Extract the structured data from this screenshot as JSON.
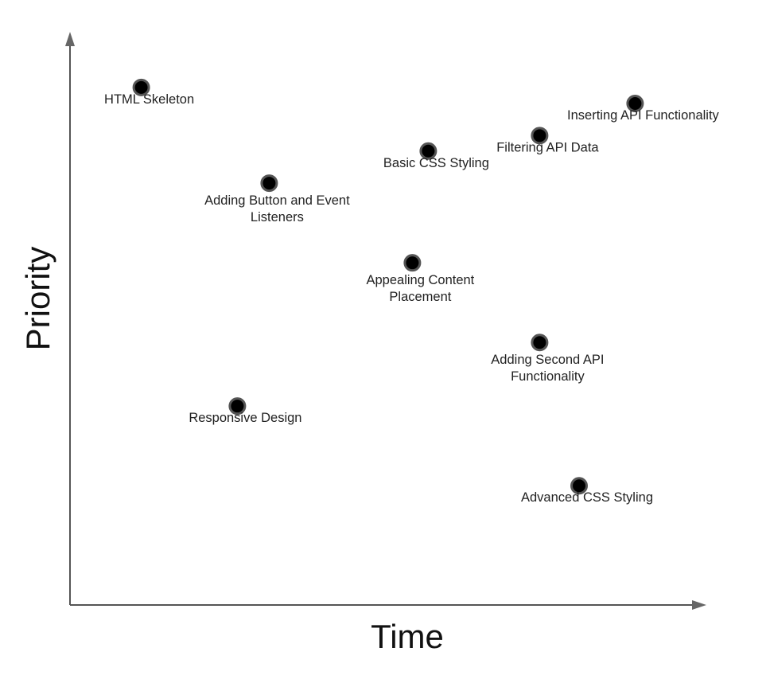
{
  "chart_data": {
    "type": "scatter",
    "xlabel": "Time",
    "ylabel": "Priority",
    "xlim": [
      0,
      100
    ],
    "ylim": [
      0,
      100
    ],
    "grid": false,
    "legend": "none",
    "marker_fill": "#000000",
    "marker_stroke": "#555555",
    "points": [
      {
        "label": [
          "HTML Skeleton"
        ],
        "x": 11.2,
        "y": 90.3
      },
      {
        "label": [
          "Inserting API Functionality"
        ],
        "x": 88.8,
        "y": 87.5
      },
      {
        "label": [
          "Filtering API Data"
        ],
        "x": 73.8,
        "y": 81.9
      },
      {
        "label": [
          "Basic CSS Styling"
        ],
        "x": 56.3,
        "y": 79.2
      },
      {
        "label": [
          "Adding Button and Event",
          "Listeners"
        ],
        "x": 31.3,
        "y": 73.6
      },
      {
        "label": [
          "Appealing Content",
          "Placement"
        ],
        "x": 53.8,
        "y": 59.7
      },
      {
        "label": [
          "Adding Second API",
          "Functionality"
        ],
        "x": 73.8,
        "y": 45.8
      },
      {
        "label": [
          "Responsive Design"
        ],
        "x": 26.3,
        "y": 34.7
      },
      {
        "label": [
          "Advanced CSS Styling"
        ],
        "x": 80.0,
        "y": 20.8
      }
    ]
  }
}
